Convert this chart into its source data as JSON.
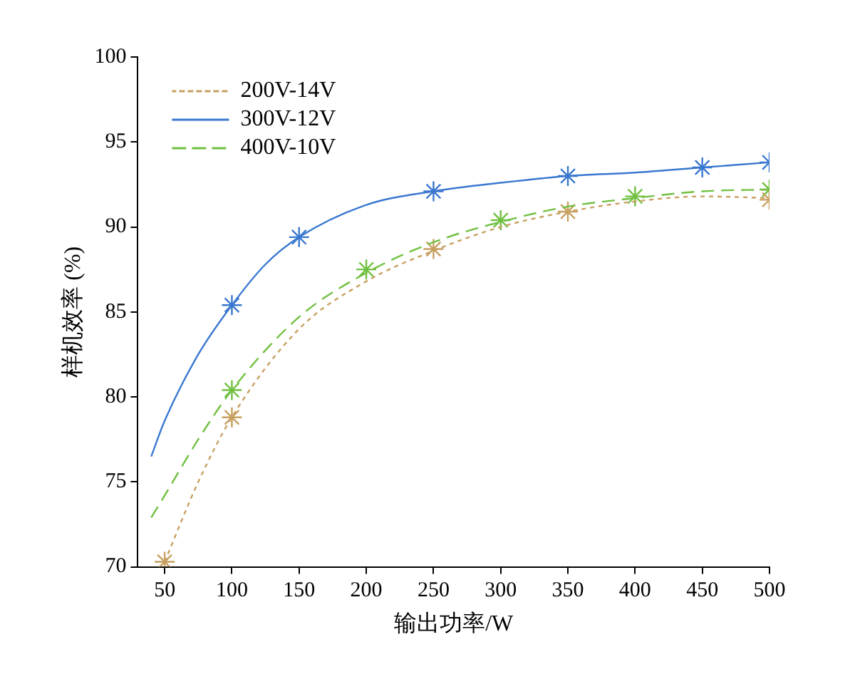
{
  "chart_data": {
    "type": "line",
    "xlabel": "输出功率/W",
    "ylabel": "样机效率 (%)",
    "xlim": [
      30,
      500
    ],
    "ylim": [
      70,
      100
    ],
    "xticks": [
      50,
      100,
      150,
      200,
      250,
      300,
      350,
      400,
      450,
      500
    ],
    "yticks": [
      70,
      75,
      80,
      85,
      90,
      95,
      100
    ],
    "grid": false,
    "legend": "top left",
    "series": [
      {
        "type": "line",
        "name": "200V-14V",
        "color": "#c8a060",
        "line_style": "dotted",
        "marker": "none",
        "x": [
          50,
          75,
          100,
          150,
          200,
          250,
          300,
          350,
          400,
          450,
          500
        ],
        "values": [
          70.3,
          75.0,
          78.8,
          84.0,
          86.8,
          88.6,
          90.0,
          90.9,
          91.5,
          91.8,
          91.7
        ]
      },
      {
        "type": "line",
        "name": "300V-12V",
        "color": "#3a78d0",
        "line_style": "solid",
        "marker": "none",
        "x": [
          40,
          50,
          75,
          100,
          125,
          150,
          200,
          250,
          300,
          350,
          400,
          450,
          500
        ],
        "values": [
          76.5,
          78.6,
          82.5,
          85.4,
          87.8,
          89.4,
          91.3,
          92.1,
          92.6,
          93.0,
          93.2,
          93.5,
          93.8
        ]
      },
      {
        "type": "line",
        "name": "400V-10V",
        "color": "#70c040",
        "line_style": "dashed",
        "marker": "none",
        "x": [
          40,
          50,
          75,
          100,
          150,
          200,
          250,
          300,
          350,
          400,
          450,
          500
        ],
        "values": [
          72.9,
          74.2,
          77.5,
          80.4,
          84.7,
          87.3,
          89.1,
          90.3,
          91.2,
          91.7,
          92.1,
          92.2
        ]
      },
      {
        "type": "scatter",
        "color": "#c8a060",
        "marker": "cross",
        "x": [
          50,
          100,
          250,
          350,
          500
        ],
        "values": [
          70.3,
          78.8,
          88.7,
          90.9,
          91.6
        ]
      },
      {
        "type": "scatter",
        "color": "#3a78d0",
        "marker": "cross",
        "x": [
          100,
          150,
          250,
          350,
          450,
          500
        ],
        "values": [
          85.4,
          89.4,
          92.1,
          93.0,
          93.5,
          93.8
        ]
      },
      {
        "type": "scatter",
        "color": "#70c040",
        "marker": "cross",
        "x": [
          100,
          200,
          300,
          400,
          500
        ],
        "values": [
          80.4,
          87.5,
          90.4,
          91.8,
          92.2
        ]
      }
    ]
  }
}
